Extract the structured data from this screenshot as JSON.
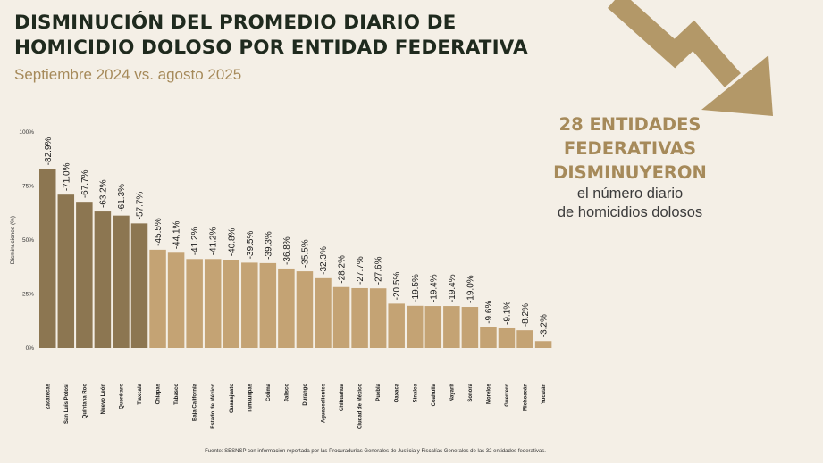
{
  "header": {
    "title_line1": "DISMINUCIÓN DEL PROMEDIO DIARIO DE",
    "title_line2": "HOMICIDIO DOLOSO POR ENTIDAD FEDERATIVA",
    "subtitle": "Septiembre 2024 vs. agosto 2025"
  },
  "callout": {
    "line1": "28 ENTIDADES",
    "line2": "FEDERATIVAS",
    "line3": "DISMINUYERON",
    "line4": "el número diario",
    "line5": "de homicidios dolosos"
  },
  "source": "Fuente: SESNSP con información reportada por las Procuradurías Generales de Justicia y Fiscalías Generales de las 32 entidades federativas.",
  "colors": {
    "bar_dark": "#8c7651",
    "bar_light": "#c4a374",
    "accent": "#a68a5a",
    "arrow": "#b39868",
    "background": "#f4efe6"
  },
  "chart_data": {
    "type": "bar",
    "ylabel": "Disminuciones (%)",
    "ylim": [
      0,
      100
    ],
    "yticks": [
      0,
      25,
      50,
      75,
      100
    ],
    "ytick_labels": [
      "0%",
      "25%",
      "50%",
      "75%",
      "100%"
    ],
    "grid": false,
    "categories": [
      "Zacatecas",
      "San Luis Potosí",
      "Quintana Roo",
      "Nuevo León",
      "Querétaro",
      "Tlaxcala",
      "Chiapas",
      "Tabasco",
      "Baja California",
      "Estado de México",
      "Guanajuato",
      "Tamaulipas",
      "Colima",
      "Jalisco",
      "Durango",
      "Aguascalientes",
      "Chihuahua",
      "Ciudad de México",
      "Puebla",
      "Oaxaca",
      "Sinaloa",
      "Coahuila",
      "Nayarit",
      "Sonora",
      "Morelos",
      "Guerrero",
      "Michoacán",
      "Yucatán"
    ],
    "values": [
      82.9,
      71.0,
      67.7,
      63.2,
      61.3,
      57.7,
      45.5,
      44.1,
      41.2,
      41.2,
      40.8,
      39.5,
      39.3,
      36.8,
      35.5,
      32.3,
      28.2,
      27.7,
      27.6,
      20.5,
      19.5,
      19.4,
      19.4,
      19.0,
      9.6,
      9.1,
      8.2,
      3.2
    ],
    "data_labels": [
      "-82.9%",
      "-71.0%",
      "-67.7%",
      "-63.2%",
      "-61.3%",
      "-57.7%",
      "-45.5%",
      "-44.1%",
      "-41.2%",
      "-41.2%",
      "-40.8%",
      "-39.5%",
      "-39.3%",
      "-36.8%",
      "-35.5%",
      "-32.3%",
      "-28.2%",
      "-27.7%",
      "-27.6%",
      "-20.5%",
      "-19.5%",
      "-19.4%",
      "-19.4%",
      "-19.0%",
      "-9.6%",
      "-9.1%",
      "-8.2%",
      "-3.2%"
    ],
    "highlight_count": 6
  }
}
